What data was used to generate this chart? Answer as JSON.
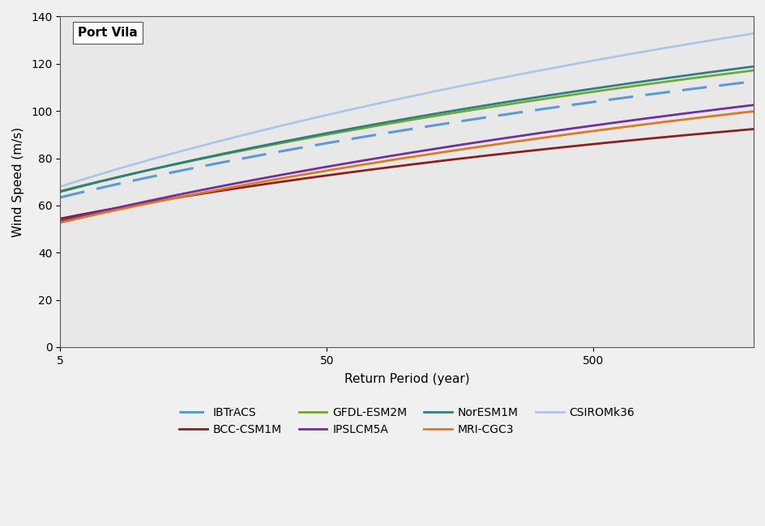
{
  "title": "Port Vila",
  "xlabel": "Return Period (year)",
  "ylabel": "Wind Speed (m/s)",
  "plot_bg_color": "#e8e8e8",
  "fig_bg_color": "#f0f0f0",
  "ylim": [
    0,
    140
  ],
  "yticks": [
    0,
    20,
    40,
    60,
    80,
    100,
    120,
    140
  ],
  "x_log_min": 5,
  "x_log_max": 2000,
  "xticks": [
    5,
    50,
    500
  ],
  "series": [
    {
      "label": "IBTrACS",
      "color": "#5b9bd5",
      "lw": 2.2,
      "linestyle": "--",
      "mu": 46.0,
      "sigma": 12.5,
      "xi": -0.1
    },
    {
      "label": "BCC-CSM1M",
      "color": "#8b2020",
      "lw": 2.0,
      "linestyle": "-",
      "mu": 40.0,
      "sigma": 10.5,
      "xi": -0.12
    },
    {
      "label": "GFDL-ESM2M",
      "color": "#70a830",
      "lw": 2.0,
      "linestyle": "-",
      "mu": 48.0,
      "sigma": 13.0,
      "xi": -0.1
    },
    {
      "label": "IPSLCM5A",
      "color": "#7030a0",
      "lw": 2.0,
      "linestyle": "-",
      "mu": 36.0,
      "sigma": 12.5,
      "xi": -0.1
    },
    {
      "label": "NorESM1M",
      "color": "#2e8080",
      "lw": 2.0,
      "linestyle": "-",
      "mu": 47.0,
      "sigma": 13.5,
      "xi": -0.1
    },
    {
      "label": "MRI-CGC3",
      "color": "#e07820",
      "lw": 2.0,
      "linestyle": "-",
      "mu": 36.0,
      "sigma": 12.0,
      "xi": -0.1
    },
    {
      "label": "CSIROMk36",
      "color": "#adc6e8",
      "lw": 2.0,
      "linestyle": "-",
      "mu": 45.0,
      "sigma": 16.5,
      "xi": -0.1
    }
  ]
}
